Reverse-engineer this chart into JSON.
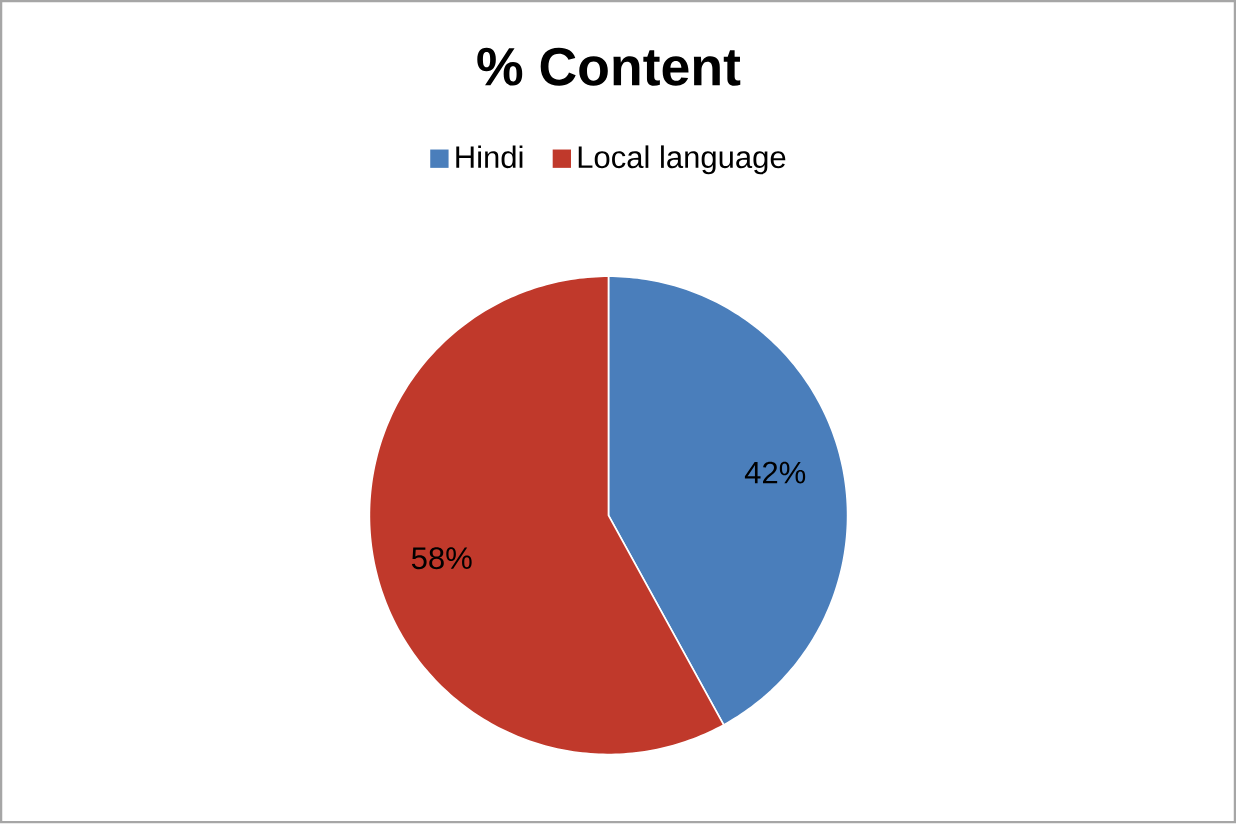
{
  "chart_data": {
    "type": "pie",
    "title": "% Content",
    "categories": [
      "Hindi",
      "Local language"
    ],
    "values": [
      42,
      58
    ],
    "colors": [
      "#4a7ebb",
      "#c0392b"
    ],
    "value_labels": [
      "42%",
      "58%"
    ],
    "legend": "top"
  }
}
